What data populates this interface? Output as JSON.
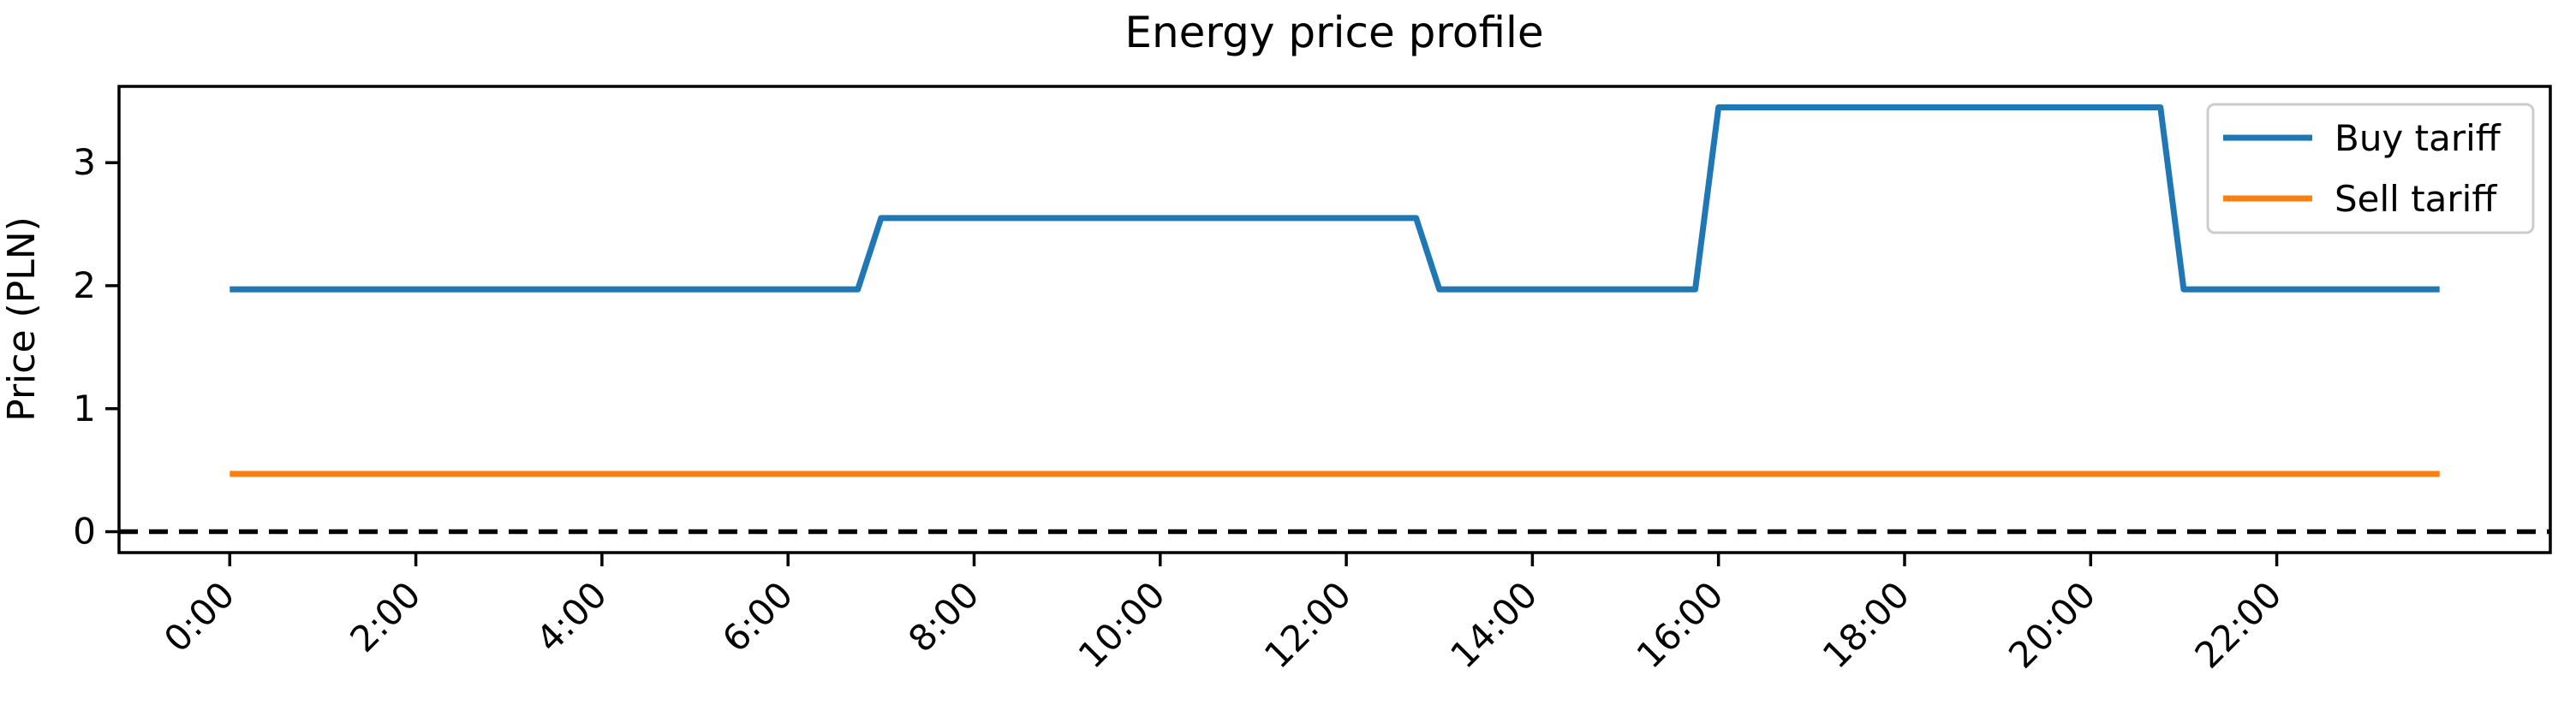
{
  "chart_data": {
    "type": "line",
    "title": "Energy price profile",
    "xlabel": "",
    "ylabel": "Price (PLN)",
    "x_unit": "hours",
    "xlim": [
      -1.19,
      24.94
    ],
    "ylim": [
      -0.17,
      3.62
    ],
    "grid": false,
    "x_ticks": [
      0,
      2,
      4,
      6,
      8,
      10,
      12,
      14,
      16,
      18,
      20,
      22
    ],
    "x_tick_labels": [
      "0:00",
      "2:00",
      "4:00",
      "6:00",
      "8:00",
      "10:00",
      "12:00",
      "14:00",
      "16:00",
      "18:00",
      "20:00",
      "22:00"
    ],
    "x_tick_rotation_deg": 45,
    "y_ticks": [
      0,
      1,
      2,
      3
    ],
    "y_tick_labels": [
      "0",
      "1",
      "2",
      "3"
    ],
    "series": [
      {
        "name": "Buy tariff",
        "color": "#1f77b4",
        "points": [
          [
            0.0,
            1.97
          ],
          [
            6.75,
            1.97
          ],
          [
            7.0,
            2.55
          ],
          [
            12.75,
            2.55
          ],
          [
            13.0,
            1.97
          ],
          [
            15.75,
            1.97
          ],
          [
            16.0,
            3.45
          ],
          [
            20.75,
            3.45
          ],
          [
            21.0,
            1.97
          ],
          [
            23.75,
            1.97
          ]
        ]
      },
      {
        "name": "Sell tariff",
        "color": "#ff7f0e",
        "points": [
          [
            0.0,
            0.47
          ],
          [
            23.75,
            0.47
          ]
        ]
      }
    ],
    "reference_lines": [
      {
        "y": 0,
        "style": "dashed",
        "color": "#000000"
      }
    ],
    "legend": {
      "position": "upper right",
      "entries": [
        "Buy tariff",
        "Sell tariff"
      ]
    }
  }
}
